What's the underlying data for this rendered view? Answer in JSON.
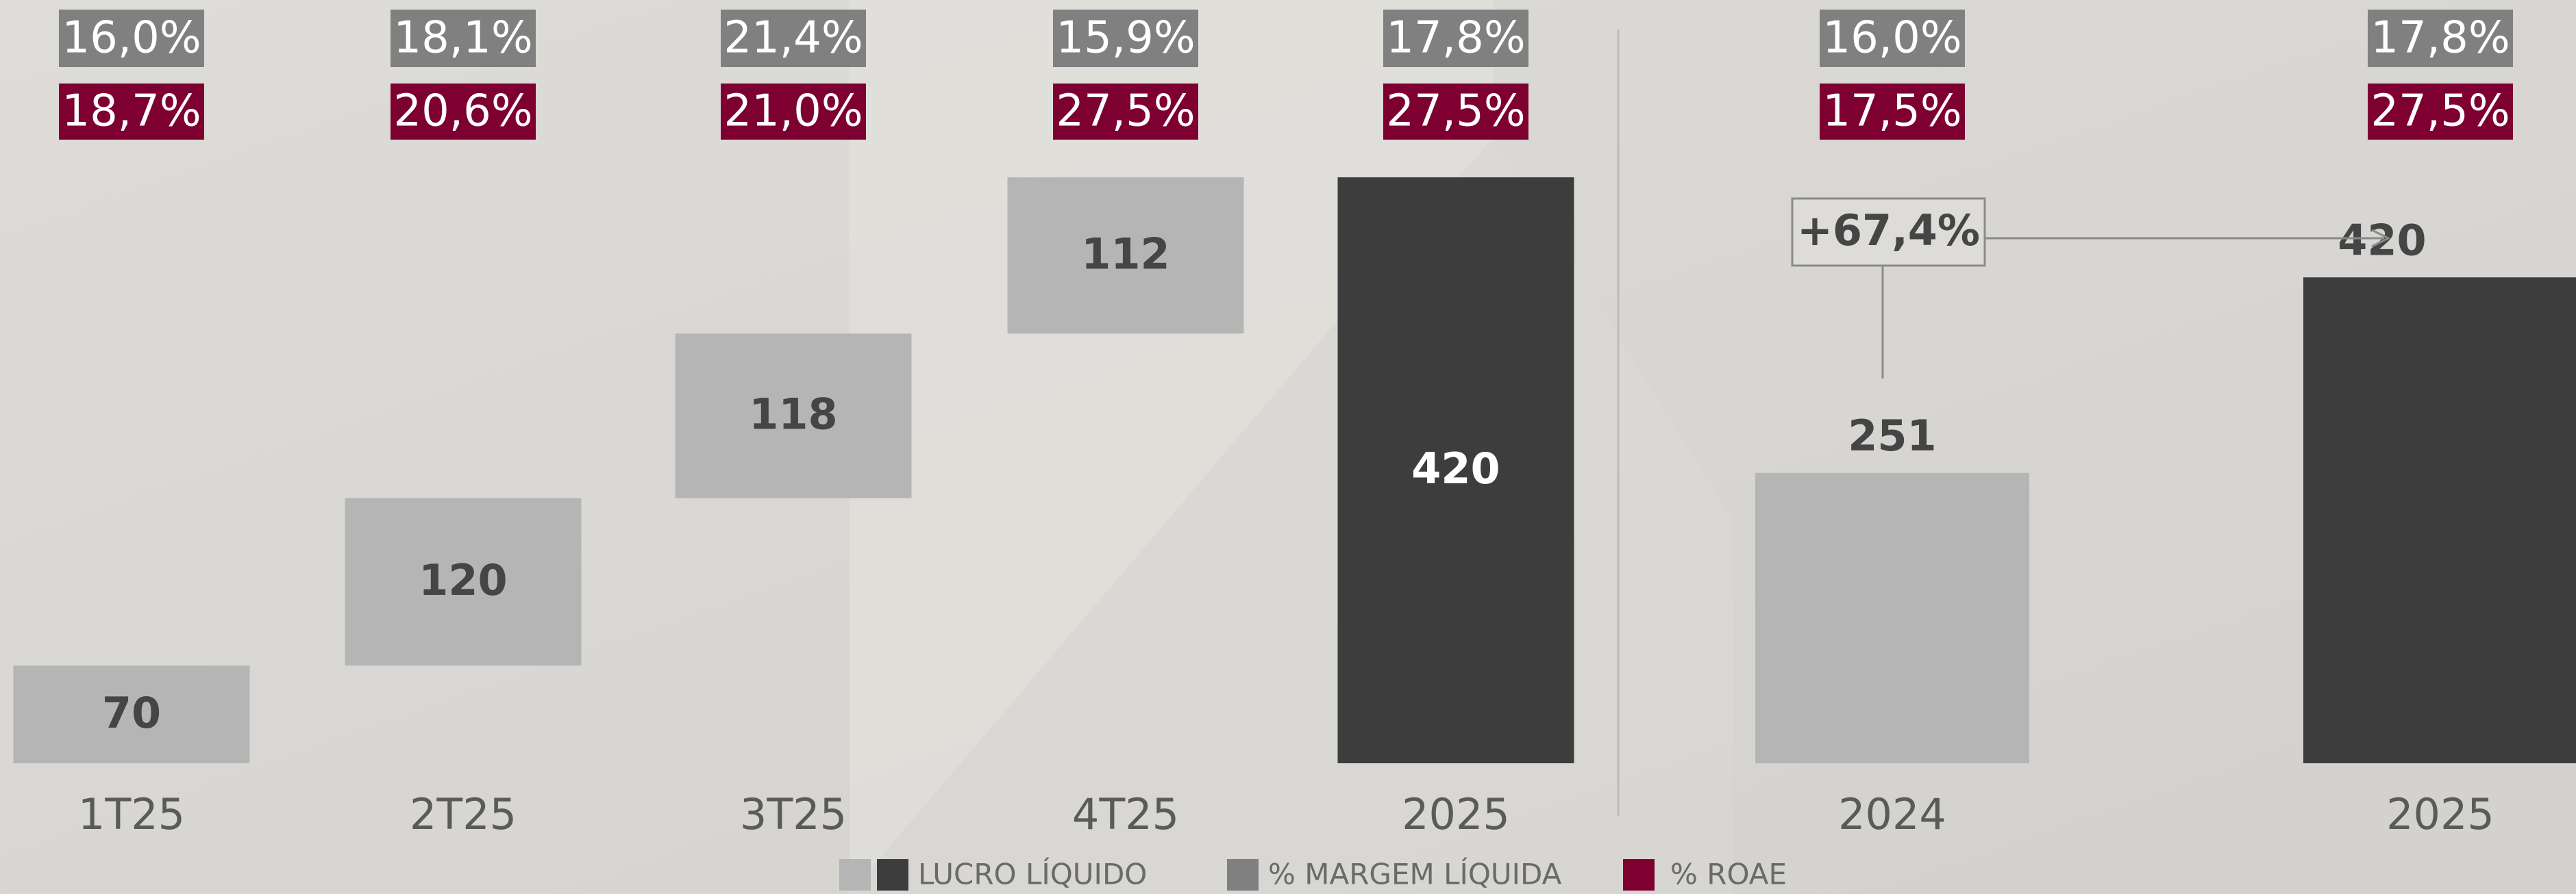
{
  "chart_data": [
    {
      "type": "waterfall",
      "categories": [
        "1T25",
        "2T25",
        "3T25",
        "4T25",
        "2025"
      ],
      "ylim": [
        0,
        500
      ],
      "series": [
        {
          "name": "LUCRO LÍQUIDO",
          "color": "#b5b5b5",
          "total_color": "#3d3d3d",
          "values": [
            70,
            120,
            118,
            112,
            420
          ]
        },
        {
          "name": "% MARGEM LÍQUIDA",
          "color": "#808080",
          "values": [
            16.0,
            18.1,
            21.4,
            15.9,
            17.8
          ],
          "value_labels": [
            "16,0%",
            "18,1%",
            "21,4%",
            "15,9%",
            "17,8%"
          ]
        },
        {
          "name": "% ROAE",
          "color": "#7d0030",
          "values": [
            18.7,
            20.6,
            21.0,
            27.5,
            27.5
          ],
          "value_labels": [
            "18,7%",
            "20,6%",
            "21,0%",
            "27,5%",
            "27,5%"
          ]
        }
      ]
    },
    {
      "type": "bar",
      "categories": [
        "2024",
        "2025"
      ],
      "ylim": [
        0,
        600
      ],
      "annotation": "+67,4%",
      "series": [
        {
          "name": "LUCRO LÍQUIDO",
          "colors": [
            "#b5b5b5",
            "#3d3d3d"
          ],
          "values": [
            251,
            420
          ]
        },
        {
          "name": "% MARGEM LÍQUIDA",
          "color": "#808080",
          "values": [
            16.0,
            17.8
          ],
          "value_labels": [
            "16,0%",
            "17,8%"
          ]
        },
        {
          "name": "% ROAE",
          "color": "#7d0030",
          "values": [
            17.5,
            27.5
          ],
          "value_labels": [
            "17,5%",
            "27,5%"
          ]
        }
      ]
    }
  ]
}
